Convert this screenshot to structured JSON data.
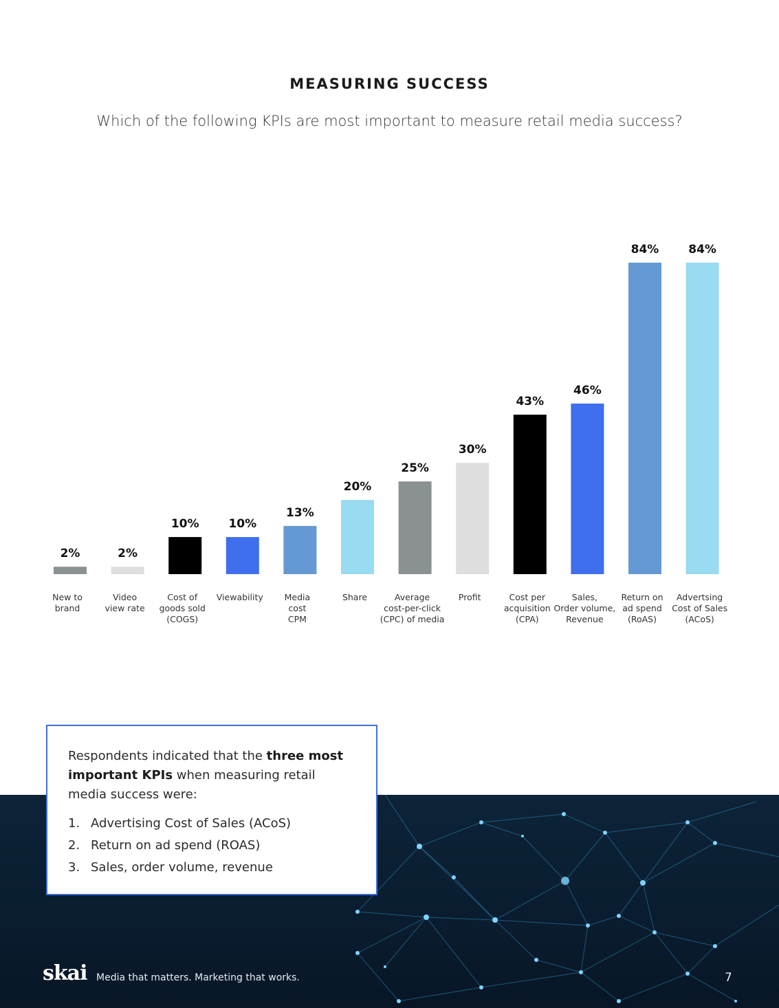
{
  "header": {
    "title": "MEASURING SUCCESS",
    "question": "Which of the following KPIs are most important to measure retail media success?"
  },
  "chart_data": {
    "type": "bar",
    "title": "",
    "xlabel": "",
    "ylabel": "",
    "ylim": [
      0,
      84
    ],
    "grid": false,
    "categories": [
      "New to brand",
      "Video view rate",
      "Cost of goods sold (COGS)",
      "Viewability",
      "Media cost CPM",
      "Share",
      "Average cost-per-click (CPC) of media",
      "Profit",
      "Cost per acquisition (CPA)",
      "Sales, Order volume, Revenue",
      "Return on ad spend (RoAS)",
      "Advertsing Cost of Sales (ACoS)"
    ],
    "category_label_lines": [
      [
        "New to",
        "brand"
      ],
      [
        "Video",
        "view rate"
      ],
      [
        "Cost of",
        "goods sold",
        "(COGS)"
      ],
      [
        "Viewability"
      ],
      [
        "Media",
        "cost",
        "CPM"
      ],
      [
        "Share"
      ],
      [
        "Average",
        "cost-per-click",
        "(CPC) of media"
      ],
      [
        "Profit"
      ],
      [
        "Cost per",
        "acquisition",
        "(CPA)"
      ],
      [
        "Sales,",
        "Order volume,",
        "Revenue"
      ],
      [
        "Return on",
        "ad spend",
        "(RoAS)"
      ],
      [
        "Advertsing",
        "Cost of Sales",
        "(ACoS)"
      ]
    ],
    "values": [
      2,
      2,
      10,
      10,
      13,
      20,
      25,
      30,
      43,
      46,
      84,
      84
    ],
    "value_labels": [
      "2%",
      "2%",
      "10%",
      "10%",
      "13%",
      "20%",
      "25%",
      "30%",
      "43%",
      "46%",
      "84%",
      "84%"
    ],
    "colors": [
      "#8a9193",
      "#dedede",
      "#000000",
      "#3f6fec",
      "#6599d3",
      "#99dbf0",
      "#8a9193",
      "#dedede",
      "#000000",
      "#3f6fec",
      "#6599d3",
      "#99dbf0"
    ]
  },
  "callout": {
    "intro_before": "Respondents indicated that the ",
    "intro_bold": "three most important KPIs",
    "intro_after": " when measuring retail media success were:",
    "items": [
      {
        "num": "1.",
        "text": "Advertising Cost of Sales (ACoS)"
      },
      {
        "num": "2.",
        "text": "Return on ad spend (ROAS)"
      },
      {
        "num": "3.",
        "text": "Sales, order volume, revenue"
      }
    ]
  },
  "footer": {
    "logo": "skai",
    "tagline": "Media that matters.  Marketing that works.",
    "page_number": "7"
  },
  "colors": {
    "accent_blue": "#3e6fdc",
    "footer_bg": "#0a1d30"
  }
}
